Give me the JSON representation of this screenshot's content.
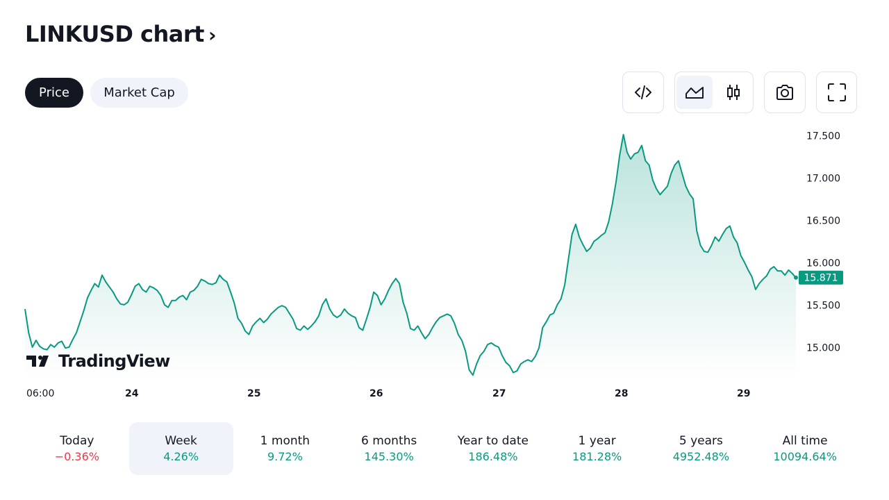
{
  "header": {
    "title": "LINKUSD chart"
  },
  "tabs": [
    {
      "label": "Price",
      "active": true
    },
    {
      "label": "Market Cap",
      "active": false
    }
  ],
  "toolbar": {
    "icons": [
      "embed-code-icon",
      "area-chart-icon",
      "candlestick-icon",
      "camera-icon",
      "fullscreen-icon"
    ],
    "selected": "area-chart-icon"
  },
  "branding": {
    "logo_text": "TradingView"
  },
  "colors": {
    "line": "#089981",
    "fill_top": "#089981",
    "price_label_bg": "#089981",
    "negative": "#f23645",
    "positive": "#089981"
  },
  "chart_data": {
    "type": "area",
    "symbol": "LINKUSD",
    "x_tick_labels": [
      "06:00",
      "24",
      "25",
      "26",
      "27",
      "28",
      "29"
    ],
    "y_tick_labels": [
      "17.500",
      "17.000",
      "16.500",
      "16.000",
      "15.500",
      "15.000"
    ],
    "ylim": [
      14.72,
      17.65
    ],
    "last_price": "15.871",
    "grid": false,
    "series": [
      {
        "values": [
          15.5,
          15.22,
          15.05,
          15.13,
          15.06,
          15.03,
          15.02,
          15.08,
          15.05,
          15.1,
          15.12,
          15.04,
          15.05,
          15.14,
          15.22,
          15.35,
          15.48,
          15.63,
          15.72,
          15.8,
          15.76,
          15.9,
          15.82,
          15.76,
          15.7,
          15.62,
          15.56,
          15.55,
          15.58,
          15.67,
          15.77,
          15.8,
          15.73,
          15.7,
          15.77,
          15.75,
          15.72,
          15.66,
          15.55,
          15.52,
          15.6,
          15.6,
          15.64,
          15.66,
          15.61,
          15.7,
          15.72,
          15.77,
          15.85,
          15.83,
          15.8,
          15.79,
          15.81,
          15.9,
          15.85,
          15.82,
          15.7,
          15.57,
          15.39,
          15.33,
          15.24,
          15.2,
          15.3,
          15.35,
          15.39,
          15.34,
          15.38,
          15.44,
          15.48,
          15.52,
          15.54,
          15.52,
          15.45,
          15.38,
          15.27,
          15.25,
          15.3,
          15.26,
          15.3,
          15.35,
          15.42,
          15.55,
          15.62,
          15.5,
          15.43,
          15.4,
          15.43,
          15.5,
          15.45,
          15.42,
          15.4,
          15.28,
          15.25,
          15.38,
          15.52,
          15.7,
          15.66,
          15.55,
          15.62,
          15.72,
          15.8,
          15.86,
          15.8,
          15.58,
          15.45,
          15.27,
          15.25,
          15.3,
          15.22,
          15.15,
          15.2,
          15.28,
          15.35,
          15.4,
          15.42,
          15.44,
          15.42,
          15.33,
          15.2,
          15.13,
          15.0,
          14.78,
          14.72,
          14.85,
          14.95,
          15.0,
          15.08,
          15.1,
          15.07,
          15.05,
          14.95,
          14.87,
          14.83,
          14.75,
          14.77,
          14.85,
          14.88,
          14.9,
          14.88,
          14.94,
          15.04,
          15.28,
          15.35,
          15.43,
          15.45,
          15.55,
          15.62,
          15.78,
          16.08,
          16.38,
          16.5,
          16.35,
          16.26,
          16.18,
          16.22,
          16.3,
          16.33,
          16.37,
          16.4,
          16.53,
          16.74,
          17.0,
          17.32,
          17.56,
          17.35,
          17.27,
          17.33,
          17.35,
          17.43,
          17.25,
          17.2,
          17.02,
          16.92,
          16.85,
          16.9,
          16.95,
          17.1,
          17.2,
          17.25,
          17.1,
          16.95,
          16.86,
          16.8,
          16.42,
          16.25,
          16.18,
          16.17,
          16.25,
          16.35,
          16.3,
          16.38,
          16.45,
          16.48,
          16.35,
          16.28,
          16.13,
          16.05,
          15.96,
          15.88,
          15.73,
          15.8,
          15.85,
          15.89,
          15.97,
          16.0,
          15.95,
          15.95,
          15.9,
          15.96,
          15.92,
          15.87
        ]
      }
    ]
  },
  "periods": [
    {
      "label": "Today",
      "value": "−0.36%",
      "sign": "neg"
    },
    {
      "label": "Week",
      "value": "4.26%",
      "sign": "pos",
      "selected": true
    },
    {
      "label": "1 month",
      "value": "9.72%",
      "sign": "pos"
    },
    {
      "label": "6 months",
      "value": "145.30%",
      "sign": "pos"
    },
    {
      "label": "Year to date",
      "value": "186.48%",
      "sign": "pos"
    },
    {
      "label": "1 year",
      "value": "181.28%",
      "sign": "pos"
    },
    {
      "label": "5 years",
      "value": "4952.48%",
      "sign": "pos"
    },
    {
      "label": "All time",
      "value": "10094.64%",
      "sign": "pos"
    }
  ]
}
